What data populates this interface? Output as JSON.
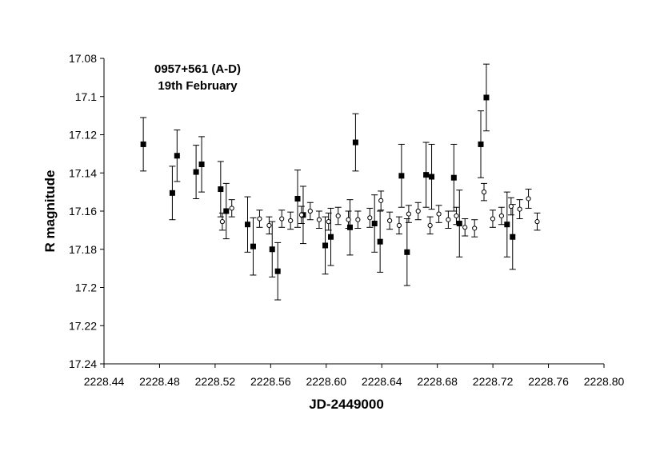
{
  "chart_data": {
    "type": "scatter",
    "title": [
      "0957+561 (A-D)",
      "19th February"
    ],
    "xlabel": "JD-2449000",
    "ylabel": "R magnitude",
    "xlim": [
      2228.44,
      2228.8
    ],
    "ylim": [
      17.24,
      17.08
    ],
    "y_inverted": true,
    "x_ticks": [
      "2228.44",
      "2228.48",
      "2228.52",
      "2228.56",
      "2228.60",
      "2228.64",
      "2228.68",
      "2228.72",
      "2228.76",
      "2228.80"
    ],
    "y_ticks": [
      "17.08",
      "17.1",
      "17.12",
      "17.14",
      "17.16",
      "17.18",
      "17.2",
      "17.22",
      "17.24"
    ],
    "grid": false,
    "legend": "none",
    "series": [
      {
        "marker": "filled-square",
        "color": "#000000",
        "points": [
          {
            "x": 2228.4683,
            "y": 17.125,
            "err": 0.014
          },
          {
            "x": 2228.4892,
            "y": 17.1505,
            "err": 0.014
          },
          {
            "x": 2228.4926,
            "y": 17.131,
            "err": 0.0135
          },
          {
            "x": 2228.5063,
            "y": 17.1395,
            "err": 0.014
          },
          {
            "x": 2228.5103,
            "y": 17.1355,
            "err": 0.0145
          },
          {
            "x": 2228.524,
            "y": 17.1485,
            "err": 0.0145
          },
          {
            "x": 2228.528,
            "y": 17.16,
            "err": 0.0145
          },
          {
            "x": 2228.5434,
            "y": 17.167,
            "err": 0.0145
          },
          {
            "x": 2228.5474,
            "y": 17.1785,
            "err": 0.015
          },
          {
            "x": 2228.5611,
            "y": 17.18,
            "err": 0.0145
          },
          {
            "x": 2228.5651,
            "y": 17.1915,
            "err": 0.015
          },
          {
            "x": 2228.5794,
            "y": 17.1535,
            "err": 0.015
          },
          {
            "x": 2228.5834,
            "y": 17.162,
            "err": 0.015
          },
          {
            "x": 2228.5993,
            "y": 17.178,
            "err": 0.015
          },
          {
            "x": 2228.6033,
            "y": 17.1735,
            "err": 0.015
          },
          {
            "x": 2228.6171,
            "y": 17.1685,
            "err": 0.0145
          },
          {
            "x": 2228.6211,
            "y": 17.124,
            "err": 0.015
          },
          {
            "x": 2228.6348,
            "y": 17.1665,
            "err": 0.015
          },
          {
            "x": 2228.6388,
            "y": 17.176,
            "err": 0.016
          },
          {
            "x": 2228.6542,
            "y": 17.1415,
            "err": 0.0165
          },
          {
            "x": 2228.6582,
            "y": 17.1815,
            "err": 0.0175
          },
          {
            "x": 2228.6719,
            "y": 17.141,
            "err": 0.017
          },
          {
            "x": 2228.6759,
            "y": 17.142,
            "err": 0.017
          },
          {
            "x": 2228.6919,
            "y": 17.1425,
            "err": 0.0175
          },
          {
            "x": 2228.6959,
            "y": 17.1665,
            "err": 0.0175
          },
          {
            "x": 2228.7113,
            "y": 17.125,
            "err": 0.0175
          },
          {
            "x": 2228.7153,
            "y": 17.1005,
            "err": 0.0175
          },
          {
            "x": 2228.7302,
            "y": 17.167,
            "err": 0.017
          },
          {
            "x": 2228.7342,
            "y": 17.1735,
            "err": 0.017
          }
        ]
      },
      {
        "marker": "open-circle",
        "color": "#000000",
        "points": [
          {
            "x": 2228.5252,
            "y": 17.1655,
            "err": 0.0045
          },
          {
            "x": 2228.532,
            "y": 17.1585,
            "err": 0.0045
          },
          {
            "x": 2228.552,
            "y": 17.164,
            "err": 0.0045
          },
          {
            "x": 2228.5589,
            "y": 17.1675,
            "err": 0.0045
          },
          {
            "x": 2228.568,
            "y": 17.164,
            "err": 0.0045
          },
          {
            "x": 2228.5743,
            "y": 17.165,
            "err": 0.0045
          },
          {
            "x": 2228.5822,
            "y": 17.162,
            "err": 0.0045
          },
          {
            "x": 2228.5885,
            "y": 17.16,
            "err": 0.0045
          },
          {
            "x": 2228.5949,
            "y": 17.1645,
            "err": 0.0045
          },
          {
            "x": 2228.6017,
            "y": 17.1655,
            "err": 0.0045
          },
          {
            "x": 2228.6086,
            "y": 17.1625,
            "err": 0.0045
          },
          {
            "x": 2228.616,
            "y": 17.1645,
            "err": 0.0045
          },
          {
            "x": 2228.6228,
            "y": 17.1645,
            "err": 0.0045
          },
          {
            "x": 2228.6314,
            "y": 17.1635,
            "err": 0.005
          },
          {
            "x": 2228.6394,
            "y": 17.1545,
            "err": 0.005
          },
          {
            "x": 2228.6457,
            "y": 17.165,
            "err": 0.0045
          },
          {
            "x": 2228.6525,
            "y": 17.1675,
            "err": 0.0045
          },
          {
            "x": 2228.6594,
            "y": 17.1615,
            "err": 0.0045
          },
          {
            "x": 2228.6662,
            "y": 17.16,
            "err": 0.0045
          },
          {
            "x": 2228.6748,
            "y": 17.1675,
            "err": 0.0045
          },
          {
            "x": 2228.6811,
            "y": 17.1615,
            "err": 0.0045
          },
          {
            "x": 2228.6879,
            "y": 17.1645,
            "err": 0.0045
          },
          {
            "x": 2228.6937,
            "y": 17.1625,
            "err": 0.0045
          },
          {
            "x": 2228.6999,
            "y": 17.1685,
            "err": 0.0045
          },
          {
            "x": 2228.7068,
            "y": 17.169,
            "err": 0.0045
          },
          {
            "x": 2228.7136,
            "y": 17.15,
            "err": 0.0045
          },
          {
            "x": 2228.7199,
            "y": 17.164,
            "err": 0.0045
          },
          {
            "x": 2228.7262,
            "y": 17.1625,
            "err": 0.0045
          },
          {
            "x": 2228.7331,
            "y": 17.1575,
            "err": 0.0045
          },
          {
            "x": 2228.7393,
            "y": 17.159,
            "err": 0.005
          },
          {
            "x": 2228.7456,
            "y": 17.1535,
            "err": 0.005
          },
          {
            "x": 2228.7519,
            "y": 17.1655,
            "err": 0.0045
          }
        ]
      }
    ]
  }
}
